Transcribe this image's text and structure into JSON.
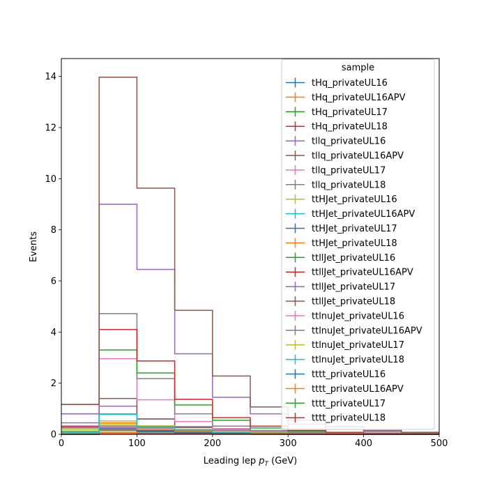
{
  "chart_data": {
    "type": "line",
    "xlabel": "Leading lep $p_T$ (GeV)",
    "xlabel_main": "Leading lep ",
    "xlabel_p": "p",
    "xlabel_sub": "T",
    "xlabel_unit": " (GeV)",
    "ylabel": "Events",
    "xlim": [
      0,
      500
    ],
    "ylim": [
      0,
      14.7
    ],
    "xticks": [
      0,
      100,
      200,
      300,
      400,
      500
    ],
    "yticks": [
      0,
      2,
      4,
      6,
      8,
      10,
      12,
      14
    ],
    "bin_edges": [
      0,
      50,
      100,
      150,
      200,
      250,
      300,
      350,
      400,
      450,
      500
    ],
    "legend": {
      "title": "sample",
      "placement": "upper right"
    },
    "series": [
      {
        "name": "tHq_privateUL16",
        "color": "#1f77b4",
        "values": [
          0.02,
          0.08,
          0.05,
          0.03,
          0.02,
          0.01,
          0.01,
          0.0,
          0.0,
          0.0
        ]
      },
      {
        "name": "tHq_privateUL16APV",
        "color": "#ff7f0e",
        "values": [
          0.02,
          0.07,
          0.04,
          0.03,
          0.02,
          0.01,
          0.01,
          0.0,
          0.0,
          0.0
        ]
      },
      {
        "name": "tHq_privateUL17",
        "color": "#2ca02c",
        "values": [
          0.05,
          0.15,
          0.1,
          0.06,
          0.04,
          0.02,
          0.01,
          0.01,
          0.0,
          0.0
        ]
      },
      {
        "name": "tHq_privateUL18",
        "color": "#d62728",
        "values": [
          0.06,
          0.2,
          0.15,
          0.09,
          0.05,
          0.03,
          0.02,
          0.01,
          0.0,
          0.0
        ]
      },
      {
        "name": "tllq_privateUL16",
        "color": "#9467bd",
        "values": [
          0.8,
          1.1,
          0.6,
          0.3,
          0.15,
          0.08,
          0.05,
          0.02,
          0.01,
          0.0
        ]
      },
      {
        "name": "tllq_privateUL16APV",
        "color": "#8c564b",
        "values": [
          1.17,
          1.4,
          0.6,
          0.27,
          0.2,
          0.1,
          0.05,
          0.03,
          0.02,
          0.0
        ]
      },
      {
        "name": "tllq_privateUL17",
        "color": "#e377c2",
        "values": [
          0.33,
          2.96,
          1.35,
          0.5,
          0.22,
          0.11,
          0.06,
          0.03,
          0.01,
          0.0
        ]
      },
      {
        "name": "tllq_privateUL18",
        "color": "#7f7f7f",
        "values": [
          0.45,
          4.72,
          2.18,
          0.8,
          0.32,
          0.15,
          0.07,
          0.04,
          0.02,
          0.0
        ]
      },
      {
        "name": "ttHJet_privateUL16",
        "color": "#bcbd22",
        "values": [
          0.18,
          0.52,
          0.22,
          0.12,
          0.07,
          0.04,
          0.02,
          0.01,
          0.01,
          0.0
        ]
      },
      {
        "name": "ttHJet_privateUL16APV",
        "color": "#17becf",
        "values": [
          0.12,
          0.8,
          0.3,
          0.12,
          0.06,
          0.03,
          0.02,
          0.01,
          0.0,
          0.0
        ]
      },
      {
        "name": "ttHJet_privateUL17",
        "color": "#1f77b4",
        "values": [
          0.08,
          0.25,
          0.12,
          0.08,
          0.05,
          0.03,
          0.02,
          0.01,
          0.01,
          0.0
        ]
      },
      {
        "name": "ttHJet_privateUL18",
        "color": "#ff7f0e",
        "values": [
          0.1,
          0.45,
          0.2,
          0.12,
          0.07,
          0.04,
          0.02,
          0.01,
          0.01,
          0.0
        ]
      },
      {
        "name": "ttllJet_privateUL16",
        "color": "#2ca02c",
        "values": [
          0.25,
          3.3,
          2.4,
          1.15,
          0.55,
          0.25,
          0.12,
          0.06,
          0.03,
          0.01
        ]
      },
      {
        "name": "ttllJet_privateUL16APV",
        "color": "#d62728",
        "values": [
          0.3,
          4.1,
          2.87,
          1.37,
          0.65,
          0.32,
          0.15,
          0.08,
          0.04,
          0.02
        ]
      },
      {
        "name": "ttllJet_privateUL17",
        "color": "#9467bd",
        "values": [
          0.8,
          9.0,
          6.45,
          3.15,
          1.45,
          0.8,
          0.4,
          0.2,
          0.1,
          0.05
        ]
      },
      {
        "name": "ttllJet_privateUL18",
        "color": "#8c564b",
        "values": [
          1.17,
          13.97,
          9.63,
          4.85,
          2.28,
          1.07,
          0.55,
          0.3,
          0.15,
          0.08
        ]
      },
      {
        "name": "ttlnuJet_privateUL16",
        "color": "#e377c2",
        "values": [
          0.05,
          0.3,
          0.25,
          0.15,
          0.08,
          0.04,
          0.02,
          0.01,
          0.01,
          0.0
        ]
      },
      {
        "name": "ttlnuJet_privateUL16APV",
        "color": "#7f7f7f",
        "values": [
          0.05,
          0.33,
          0.28,
          0.16,
          0.09,
          0.05,
          0.03,
          0.01,
          0.01,
          0.0
        ]
      },
      {
        "name": "ttlnuJet_privateUL17",
        "color": "#bcbd22",
        "values": [
          0.06,
          0.4,
          0.33,
          0.2,
          0.1,
          0.06,
          0.03,
          0.02,
          0.01,
          0.0
        ]
      },
      {
        "name": "ttlnuJet_privateUL18",
        "color": "#17becf",
        "values": [
          0.08,
          0.78,
          0.3,
          0.16,
          0.08,
          0.04,
          0.02,
          0.01,
          0.01,
          0.0
        ]
      },
      {
        "name": "tttt_privateUL16",
        "color": "#1f77b4",
        "values": [
          0.0,
          0.01,
          0.01,
          0.01,
          0.01,
          0.0,
          0.0,
          0.0,
          0.0,
          0.0
        ]
      },
      {
        "name": "tttt_privateUL16APV",
        "color": "#ff7f0e",
        "values": [
          0.0,
          0.01,
          0.01,
          0.01,
          0.0,
          0.0,
          0.0,
          0.0,
          0.0,
          0.0
        ]
      },
      {
        "name": "tttt_privateUL17",
        "color": "#2ca02c",
        "values": [
          0.0,
          0.01,
          0.01,
          0.01,
          0.01,
          0.01,
          0.0,
          0.0,
          0.0,
          0.0
        ]
      },
      {
        "name": "tttt_privateUL18",
        "color": "#d62728",
        "values": [
          0.0,
          0.02,
          0.02,
          0.02,
          0.01,
          0.01,
          0.01,
          0.0,
          0.0,
          0.0
        ]
      }
    ]
  }
}
